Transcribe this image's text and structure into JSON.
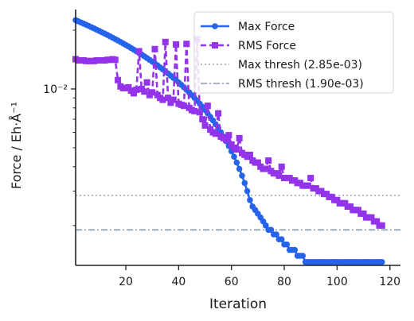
{
  "chart_data": {
    "type": "line",
    "xlabel": "Iteration",
    "ylabel": "Force / Eh·Å⁻¹",
    "xlim": [
      1,
      124
    ],
    "ylim": [
      0.00125,
      0.0255
    ],
    "yscale": "log",
    "grid": false,
    "legend_position": "top-right",
    "x_ticks": [
      20,
      40,
      60,
      80,
      100,
      120
    ],
    "x_tick_labels": [
      "20",
      "40",
      "60",
      "80",
      "100",
      "120"
    ],
    "y_ticks": [
      0.01
    ],
    "y_tick_labels": [
      "10⁻²"
    ],
    "x": [
      1,
      2,
      3,
      4,
      5,
      6,
      7,
      8,
      9,
      10,
      11,
      12,
      13,
      14,
      15,
      16,
      17,
      18,
      19,
      20,
      21,
      22,
      23,
      24,
      25,
      26,
      27,
      28,
      29,
      30,
      31,
      32,
      33,
      34,
      35,
      36,
      37,
      38,
      39,
      40,
      41,
      42,
      43,
      44,
      45,
      46,
      47,
      48,
      49,
      50,
      51,
      52,
      53,
      54,
      55,
      56,
      57,
      58,
      59,
      60,
      61,
      62,
      63,
      64,
      65,
      66,
      67,
      68,
      69,
      70,
      71,
      72,
      73,
      74,
      75,
      76,
      77,
      78,
      79,
      80,
      81,
      82,
      83,
      84,
      85,
      86,
      87,
      88,
      89,
      90,
      91,
      92,
      93,
      94,
      95,
      96,
      97,
      98,
      99,
      100,
      101,
      102,
      103,
      104,
      105,
      106,
      107,
      108,
      109,
      110,
      111,
      112,
      113,
      114,
      115,
      116,
      117
    ],
    "series": [
      {
        "name": "Max Force",
        "color": "#2563eb",
        "marker": "circle",
        "linestyle": "solid",
        "values": [
          0.0225,
          0.0222,
          0.0219,
          0.0216,
          0.0213,
          0.021,
          0.0207,
          0.0204,
          0.0201,
          0.0198,
          0.0195,
          0.0192,
          0.0189,
          0.0186,
          0.0183,
          0.018,
          0.0177,
          0.0174,
          0.0171,
          0.0168,
          0.0165,
          0.0162,
          0.0159,
          0.0156,
          0.0153,
          0.015,
          0.0147,
          0.0144,
          0.0141,
          0.0138,
          0.0135,
          0.0132,
          0.0129,
          0.0126,
          0.0123,
          0.012,
          0.0117,
          0.0114,
          0.0111,
          0.0108,
          0.0105,
          0.0102,
          0.0099,
          0.0096,
          0.0093,
          0.009,
          0.0087,
          0.0084,
          0.0081,
          0.0078,
          0.0075,
          0.0072,
          0.0069,
          0.0066,
          0.0063,
          0.006,
          0.0057,
          0.0054,
          0.0051,
          0.0048,
          0.0045,
          0.0042,
          0.0039,
          0.0036,
          0.0033,
          0.003,
          0.0027,
          0.0025,
          0.0024,
          0.0023,
          0.0022,
          0.0021,
          0.002,
          0.0019,
          0.0019,
          0.0018,
          0.0018,
          0.0017,
          0.0017,
          0.0016,
          0.0016,
          0.0015,
          0.0015,
          0.0015,
          0.0014,
          0.0014,
          0.0014,
          0.0013,
          0.0013,
          0.0013,
          0.0013,
          0.0013,
          0.0013,
          0.0013,
          0.0013,
          0.0013,
          0.0013,
          0.0013,
          0.0013,
          0.0013,
          0.0013,
          0.0013,
          0.0013,
          0.0013,
          0.0013,
          0.0013,
          0.0013,
          0.0013,
          0.0013,
          0.0013,
          0.0013,
          0.0013,
          0.0013,
          0.0013,
          0.0013,
          0.0013,
          0.0013
        ]
      },
      {
        "name": "RMS Force",
        "color": "#9333ea",
        "marker": "square",
        "linestyle": "dashed",
        "values": [
          0.0142,
          0.014,
          0.014,
          0.014,
          0.0139,
          0.0139,
          0.0139,
          0.0139,
          0.014,
          0.014,
          0.014,
          0.014,
          0.0141,
          0.0141,
          0.0142,
          0.0141,
          0.0111,
          0.0103,
          0.0101,
          0.0101,
          0.0102,
          0.0098,
          0.0095,
          0.0099,
          0.0156,
          0.01,
          0.0097,
          0.0108,
          0.0093,
          0.0096,
          0.016,
          0.0093,
          0.009,
          0.0088,
          0.0174,
          0.009,
          0.0085,
          0.0088,
          0.0169,
          0.0084,
          0.0083,
          0.0082,
          0.017,
          0.008,
          0.0078,
          0.0077,
          0.018,
          0.0076,
          0.007,
          0.0065,
          0.0082,
          0.0062,
          0.006,
          0.0059,
          0.0075,
          0.0057,
          0.0056,
          0.0055,
          0.0058,
          0.0052,
          0.005,
          0.0049,
          0.0056,
          0.0047,
          0.0046,
          0.0045,
          0.0046,
          0.0043,
          0.0042,
          0.0042,
          0.004,
          0.0039,
          0.0039,
          0.0043,
          0.0038,
          0.0037,
          0.0037,
          0.0036,
          0.004,
          0.0035,
          0.0035,
          0.0035,
          0.0034,
          0.0034,
          0.0033,
          0.0033,
          0.0032,
          0.0032,
          0.0032,
          0.0035,
          0.0031,
          0.0031,
          0.003,
          0.003,
          0.0029,
          0.0029,
          0.0028,
          0.0028,
          0.0027,
          0.0027,
          0.0026,
          0.0026,
          0.0026,
          0.0025,
          0.0025,
          0.0024,
          0.0024,
          0.0024,
          0.0023,
          0.0023,
          0.0022,
          0.0022,
          0.0022,
          0.0021,
          0.0021,
          0.002,
          0.002
        ]
      }
    ],
    "thresholds": [
      {
        "name": "Max thresh (2.85e-03)",
        "value": 0.00285,
        "color": "#9ca3af",
        "linestyle": "dotted"
      },
      {
        "name": "RMS thresh (1.90e-03)",
        "value": 0.0019,
        "color": "#8a9aae",
        "linestyle": "dashdot"
      }
    ]
  }
}
